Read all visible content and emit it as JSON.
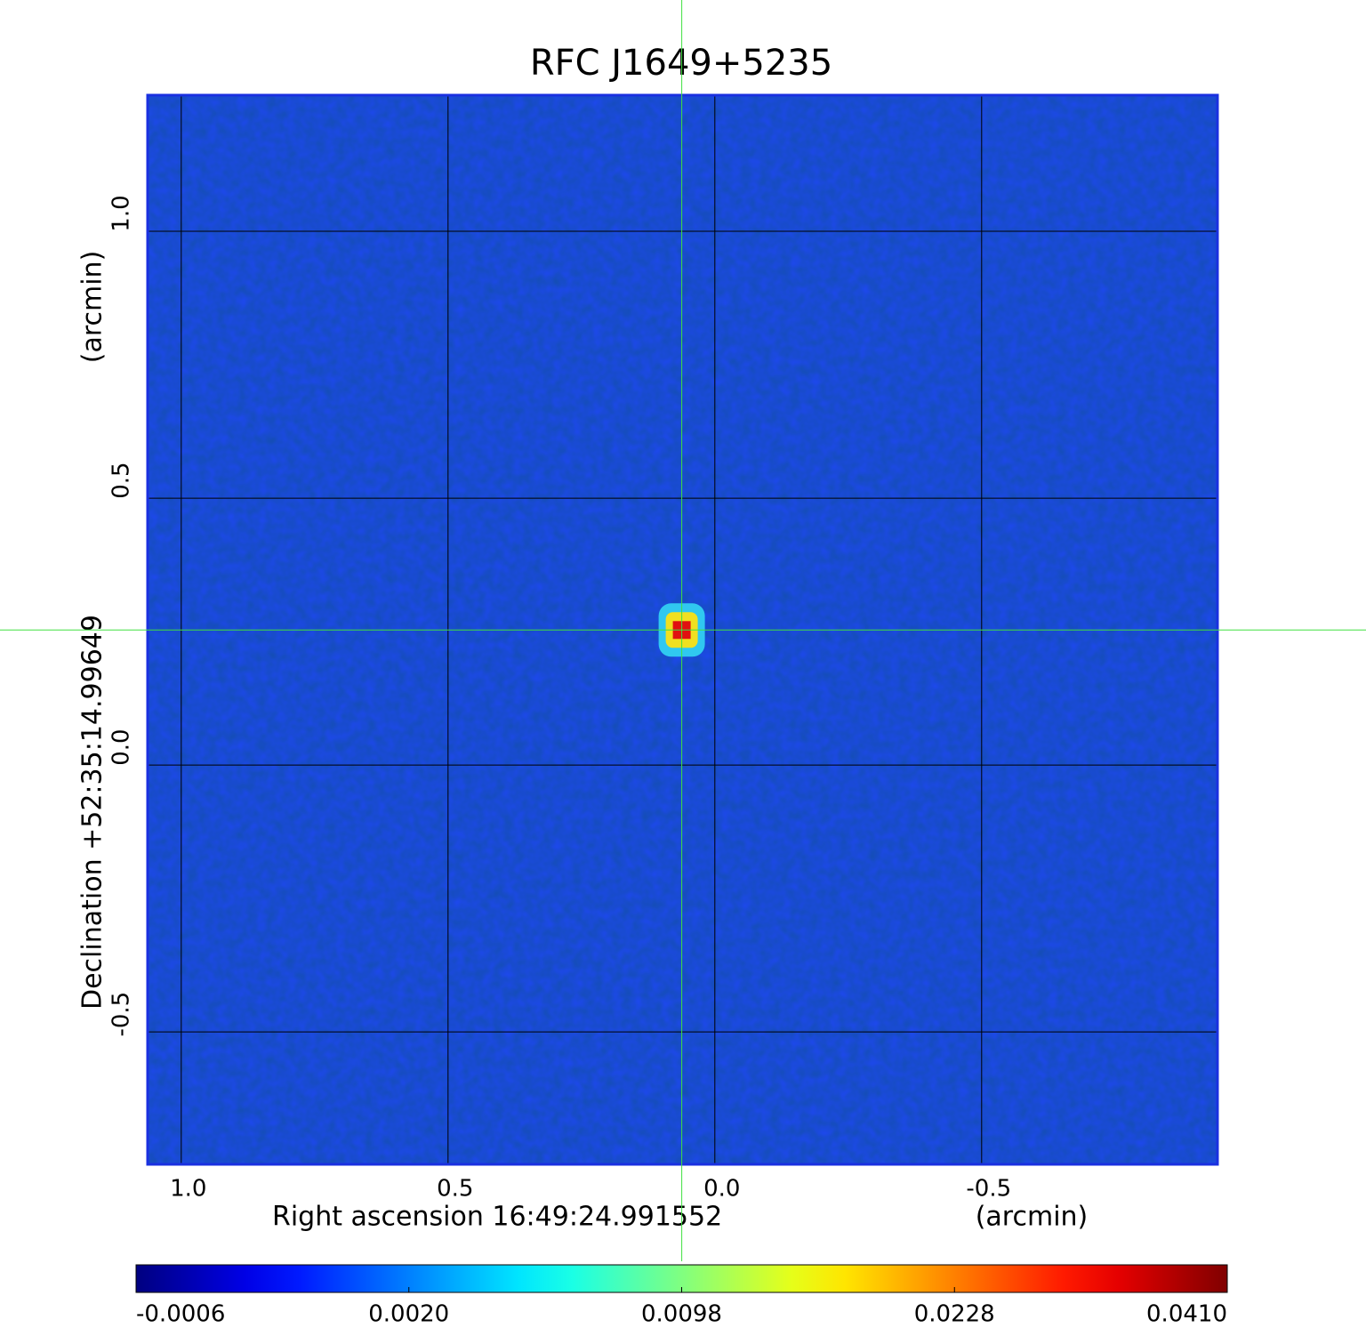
{
  "chart_data": {
    "type": "image",
    "title": "RFC J1649+5235",
    "title_color": "#1010d8",
    "x_label": "Right ascension  16:49:24.991552",
    "x_unit": "(arcmin)",
    "y_label": "Declination  +52:35:14.99649",
    "y_unit": "(arcmin)",
    "xlim": [
      1.063,
      -0.942
    ],
    "ylim": [
      -0.748,
      1.255
    ],
    "xticks": [
      {
        "value": 1,
        "label": "1.0"
      },
      0.5,
      {
        "value": 0,
        "label": "0.0"
      },
      -0.5
    ],
    "yticks": [
      {
        "value": 1,
        "label": "1.0"
      },
      0.5,
      {
        "value": 0,
        "label": "0.0"
      },
      -0.5
    ],
    "grid": true,
    "image_color": "#1e48f0",
    "border_color": "#1a30e0",
    "source": {
      "x": 0.062,
      "y": 0.253
    },
    "crosshair_color": "#40e040",
    "colormap": "jet",
    "colorbar_scale": "sqrt",
    "clim": [
      -0.0006,
      0.041
    ],
    "colorbar_ticks": [
      -0.0006,
      {
        "value": 0.002,
        "label": "0.0020"
      },
      0.0098,
      0.0228,
      {
        "value": 0.041,
        "label": "0.0410"
      }
    ]
  }
}
